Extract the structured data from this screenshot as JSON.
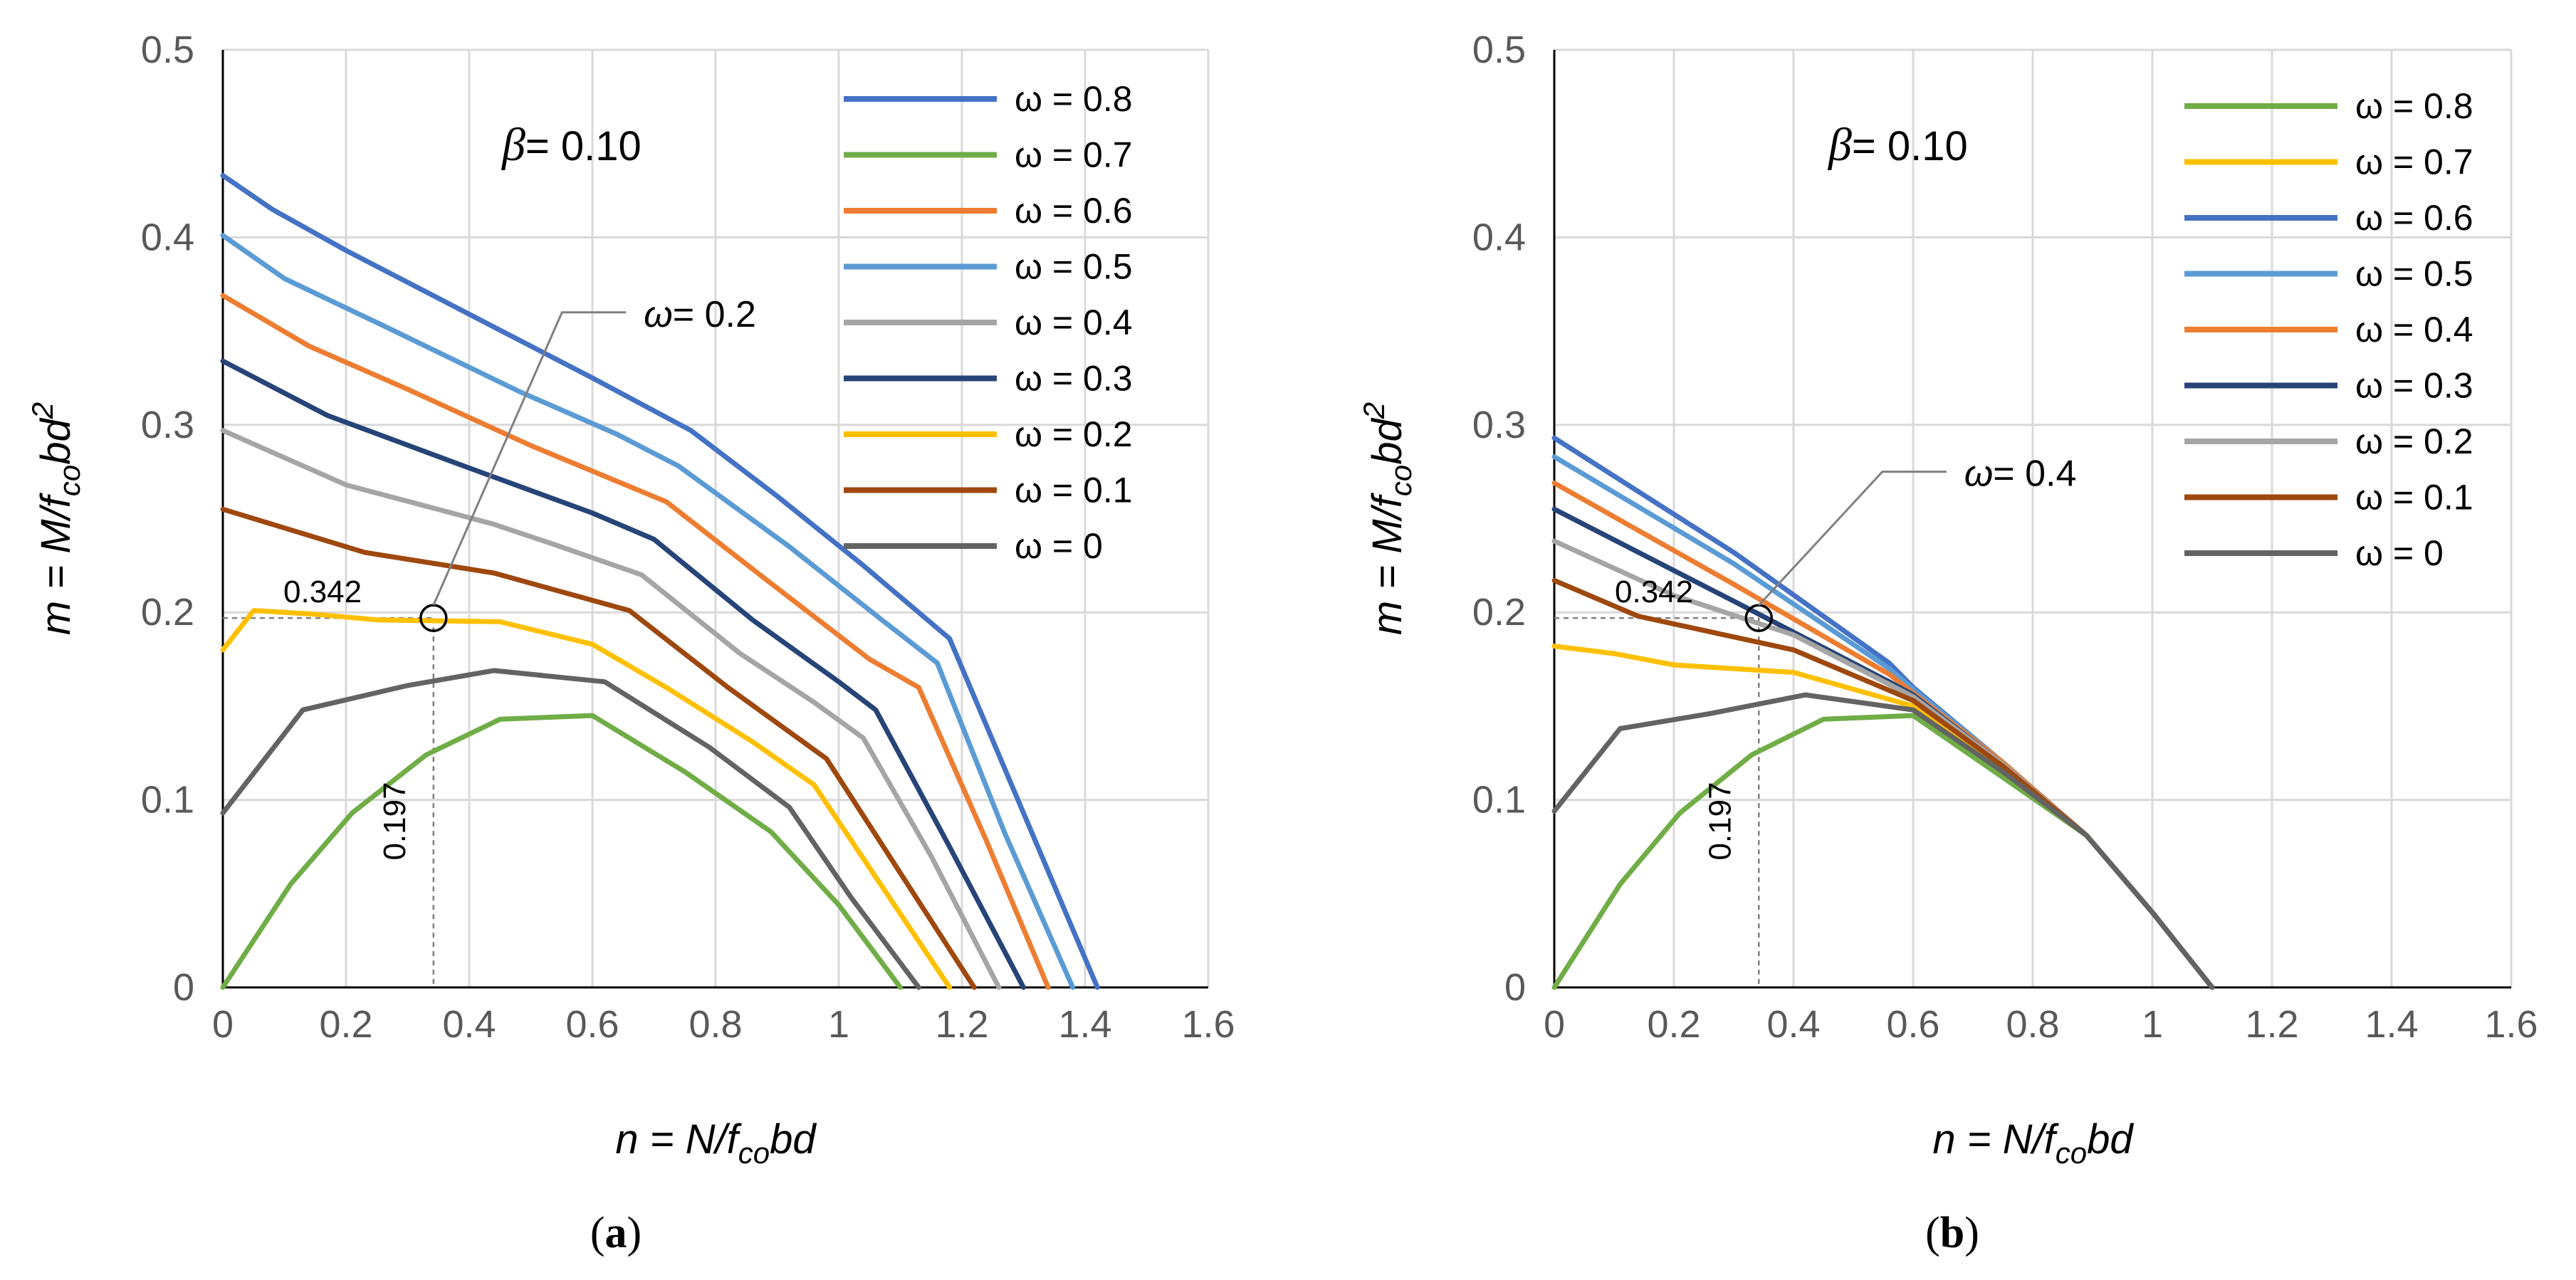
{
  "chart_data": [
    {
      "type": "line",
      "panel_label": "(a)",
      "beta_label": "β",
      "beta_value": "= 0.10",
      "xlabel": "n = N/f_co bd",
      "ylabel": "m = M/f_co bd²",
      "xlim": [
        0,
        1.6
      ],
      "ylim": [
        0,
        0.5
      ],
      "x_ticks": [
        "0",
        "0.2",
        "0.4",
        "0.6",
        "0.8",
        "1",
        "1.2",
        "1.4",
        "1.6"
      ],
      "y_ticks": [
        "0",
        "0.1",
        "0.2",
        "0.3",
        "0.4",
        "0.5"
      ],
      "grid": true,
      "legend_position": "top-right",
      "annotation": {
        "label": "ω",
        "value": "= 0.2",
        "point": [
          0.342,
          0.197
        ],
        "label_at": [
          0.62,
          0.36
        ]
      },
      "dash_labels": {
        "x_value": "0.197",
        "y_value": "0.342"
      },
      "series": [
        {
          "name": "ω = 0.8",
          "color": "#4472C4",
          "points": [
            [
              0,
              0.433
            ],
            [
              0.08,
              0.415
            ],
            [
              0.2,
              0.393
            ],
            [
              0.4,
              0.359
            ],
            [
              0.6,
              0.325
            ],
            [
              0.76,
              0.297
            ],
            [
              0.9,
              0.262
            ],
            [
              1.04,
              0.225
            ],
            [
              1.18,
              0.186
            ],
            [
              1.3,
              0.093
            ],
            [
              1.42,
              0
            ]
          ]
        },
        {
          "name": "ω = 0.7",
          "color": "#70AD47",
          "points": [
            [
              0,
              0
            ],
            [
              0.11,
              0.055
            ],
            [
              0.21,
              0.093
            ],
            [
              0.33,
              0.124
            ],
            [
              0.45,
              0.143
            ],
            [
              0.6,
              0.145
            ],
            [
              0.75,
              0.115
            ],
            [
              0.89,
              0.083
            ],
            [
              1.0,
              0.044
            ],
            [
              1.1,
              0
            ]
          ]
        },
        {
          "name": "ω = 0.6",
          "color": "#ED7D31",
          "points": [
            [
              0,
              0.369
            ],
            [
              0.14,
              0.342
            ],
            [
              0.3,
              0.319
            ],
            [
              0.5,
              0.289
            ],
            [
              0.72,
              0.259
            ],
            [
              0.88,
              0.218
            ],
            [
              1.05,
              0.175
            ],
            [
              1.13,
              0.16
            ],
            [
              1.24,
              0.078
            ],
            [
              1.34,
              0
            ]
          ]
        },
        {
          "name": "ω = 0.5",
          "color": "#5B9BD5",
          "points": [
            [
              0,
              0.401
            ],
            [
              0.1,
              0.378
            ],
            [
              0.26,
              0.353
            ],
            [
              0.48,
              0.318
            ],
            [
              0.64,
              0.295
            ],
            [
              0.74,
              0.278
            ],
            [
              0.92,
              0.235
            ],
            [
              1.07,
              0.196
            ],
            [
              1.16,
              0.173
            ],
            [
              1.27,
              0.082
            ],
            [
              1.38,
              0
            ]
          ]
        },
        {
          "name": "ω = 0.4",
          "color": "#A5A5A5",
          "points": [
            [
              0,
              0.297
            ],
            [
              0.2,
              0.268
            ],
            [
              0.44,
              0.247
            ],
            [
              0.54,
              0.236
            ],
            [
              0.68,
              0.22
            ],
            [
              0.84,
              0.178
            ],
            [
              0.96,
              0.152
            ],
            [
              1.04,
              0.133
            ],
            [
              1.15,
              0.07
            ],
            [
              1.26,
              0
            ]
          ]
        },
        {
          "name": "ω = 0.3",
          "color": "#264478",
          "points": [
            [
              0,
              0.334
            ],
            [
              0.17,
              0.305
            ],
            [
              0.4,
              0.277
            ],
            [
              0.6,
              0.253
            ],
            [
              0.7,
              0.239
            ],
            [
              0.86,
              0.196
            ],
            [
              1.0,
              0.163
            ],
            [
              1.06,
              0.148
            ],
            [
              1.18,
              0.075
            ],
            [
              1.3,
              0
            ]
          ]
        },
        {
          "name": "ω = 0.2",
          "color": "#FFC000",
          "points": [
            [
              0,
              0.18
            ],
            [
              0.05,
              0.201
            ],
            [
              0.15,
              0.199
            ],
            [
              0.25,
              0.196
            ],
            [
              0.45,
              0.195
            ],
            [
              0.6,
              0.183
            ],
            [
              0.72,
              0.16
            ],
            [
              0.86,
              0.131
            ],
            [
              0.96,
              0.108
            ],
            [
              1.07,
              0.054
            ],
            [
              1.18,
              0
            ]
          ]
        },
        {
          "name": "ω = 0.1",
          "color": "#9E480E",
          "points": [
            [
              0,
              0.255
            ],
            [
              0.23,
              0.232
            ],
            [
              0.44,
              0.221
            ],
            [
              0.66,
              0.201
            ],
            [
              0.82,
              0.16
            ],
            [
              0.98,
              0.122
            ],
            [
              1.1,
              0.061
            ],
            [
              1.22,
              0
            ]
          ]
        },
        {
          "name": "ω = 0",
          "color": "#636363",
          "points": [
            [
              0,
              0.093
            ],
            [
              0.13,
              0.148
            ],
            [
              0.3,
              0.161
            ],
            [
              0.44,
              0.169
            ],
            [
              0.62,
              0.163
            ],
            [
              0.79,
              0.128
            ],
            [
              0.92,
              0.096
            ],
            [
              1.02,
              0.048
            ],
            [
              1.13,
              0
            ]
          ]
        }
      ]
    },
    {
      "type": "line",
      "panel_label": "(b)",
      "beta_label": "β",
      "beta_value": "= 0.10",
      "xlabel": "n = N/f_co bd",
      "ylabel": "m = M/f_co bd²",
      "xlim": [
        0,
        1.6
      ],
      "ylim": [
        0,
        0.5
      ],
      "x_ticks": [
        "0",
        "0.2",
        "0.4",
        "0.6",
        "0.8",
        "1",
        "1.2",
        "1.4",
        "1.6"
      ],
      "y_ticks": [
        "0",
        "0.1",
        "0.2",
        "0.3",
        "0.4",
        "0.5"
      ],
      "grid": true,
      "legend_position": "top-right",
      "annotation": {
        "label": "ω",
        "value": "= 0.4",
        "point": [
          0.342,
          0.197
        ],
        "label_at": [
          0.62,
          0.275
        ]
      },
      "dash_labels": {
        "x_value": "0.197",
        "y_value": "0.342"
      },
      "series": [
        {
          "name": "ω = 0.8",
          "color": "#70AD47",
          "points": [
            [
              0,
              0
            ],
            [
              0.11,
              0.055
            ],
            [
              0.21,
              0.093
            ],
            [
              0.33,
              0.124
            ],
            [
              0.45,
              0.143
            ],
            [
              0.6,
              0.145
            ],
            [
              0.75,
              0.112
            ],
            [
              0.89,
              0.081
            ],
            [
              1.0,
              0.04
            ],
            [
              1.1,
              0
            ]
          ]
        },
        {
          "name": "ω = 0.7",
          "color": "#FFC000",
          "points": [
            [
              0,
              0.182
            ],
            [
              0.1,
              0.178
            ],
            [
              0.2,
              0.172
            ],
            [
              0.4,
              0.168
            ],
            [
              0.6,
              0.15
            ],
            [
              0.75,
              0.115
            ],
            [
              0.89,
              0.081
            ],
            [
              1.0,
              0.04
            ],
            [
              1.1,
              0
            ]
          ]
        },
        {
          "name": "ω = 0.6",
          "color": "#4472C4",
          "points": [
            [
              0,
              0.293
            ],
            [
              0.3,
              0.232
            ],
            [
              0.56,
              0.173
            ],
            [
              0.6,
              0.16
            ],
            [
              0.75,
              0.12
            ],
            [
              0.89,
              0.081
            ],
            [
              1.0,
              0.04
            ],
            [
              1.1,
              0
            ]
          ]
        },
        {
          "name": "ω = 0.5",
          "color": "#5B9BD5",
          "points": [
            [
              0,
              0.283
            ],
            [
              0.3,
              0.226
            ],
            [
              0.56,
              0.17
            ],
            [
              0.6,
              0.159
            ],
            [
              0.75,
              0.12
            ],
            [
              0.89,
              0.081
            ],
            [
              1.0,
              0.04
            ],
            [
              1.1,
              0
            ]
          ]
        },
        {
          "name": "ω = 0.4",
          "color": "#ED7D31",
          "points": [
            [
              0,
              0.269
            ],
            [
              0.3,
              0.215
            ],
            [
              0.56,
              0.167
            ],
            [
              0.6,
              0.157
            ],
            [
              0.75,
              0.12
            ],
            [
              0.89,
              0.081
            ],
            [
              1.0,
              0.04
            ],
            [
              1.1,
              0
            ]
          ]
        },
        {
          "name": "ω = 0.3",
          "color": "#264478",
          "points": [
            [
              0,
              0.255
            ],
            [
              0.3,
              0.206
            ],
            [
              0.56,
              0.163
            ],
            [
              0.6,
              0.156
            ],
            [
              0.75,
              0.119
            ],
            [
              0.89,
              0.081
            ],
            [
              1.0,
              0.04
            ],
            [
              1.1,
              0
            ]
          ]
        },
        {
          "name": "ω = 0.2",
          "color": "#A5A5A5",
          "points": [
            [
              0,
              0.238
            ],
            [
              0.2,
              0.209
            ],
            [
              0.4,
              0.188
            ],
            [
              0.6,
              0.155
            ],
            [
              0.75,
              0.119
            ],
            [
              0.89,
              0.081
            ],
            [
              1.0,
              0.04
            ],
            [
              1.1,
              0
            ]
          ]
        },
        {
          "name": "ω = 0.1",
          "color": "#9E480E",
          "points": [
            [
              0,
              0.217
            ],
            [
              0.14,
              0.198
            ],
            [
              0.4,
              0.18
            ],
            [
              0.6,
              0.153
            ],
            [
              0.75,
              0.118
            ],
            [
              0.89,
              0.081
            ],
            [
              1.0,
              0.04
            ],
            [
              1.1,
              0
            ]
          ]
        },
        {
          "name": "ω = 0",
          "color": "#636363",
          "points": [
            [
              0,
              0.094
            ],
            [
              0.11,
              0.138
            ],
            [
              0.26,
              0.146
            ],
            [
              0.42,
              0.156
            ],
            [
              0.6,
              0.148
            ],
            [
              0.75,
              0.115
            ],
            [
              0.89,
              0.081
            ],
            [
              1.0,
              0.04
            ],
            [
              1.1,
              0
            ]
          ]
        }
      ]
    }
  ]
}
